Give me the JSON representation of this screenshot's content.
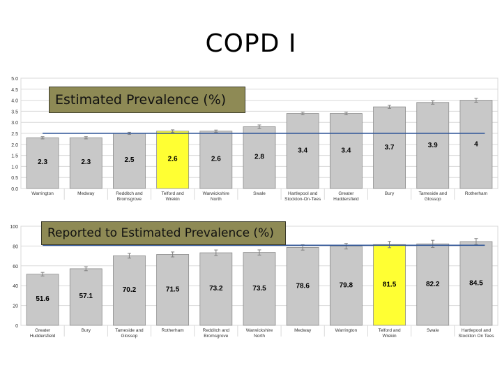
{
  "slide": {
    "title": "COPD I"
  },
  "chart_data": [
    {
      "type": "bar",
      "title": "Estimated Prevalence (%)",
      "categories": [
        "Warrington",
        "Medway",
        "Redditch and Bromsgrove",
        "Telford and Wrekin",
        "Warwickshire North",
        "Swale",
        "Hartlepool and Stockton-On-Tees",
        "Greater Huddersfield",
        "Bury",
        "Tameside and Glossop",
        "Rotherham"
      ],
      "values": [
        2.3,
        2.3,
        2.5,
        2.6,
        2.6,
        2.8,
        3.4,
        3.4,
        3.7,
        3.9,
        4
      ],
      "value_labels": [
        "2.3",
        "2.3",
        "2.5",
        "2.6",
        "2.6",
        "2.8",
        "3.4",
        "3.4",
        "3.7",
        "3.9",
        "4"
      ],
      "error_bars": [
        0.05,
        0.05,
        0.05,
        0.06,
        0.05,
        0.08,
        0.06,
        0.06,
        0.07,
        0.08,
        0.09
      ],
      "highlight": "Telford and Wrekin",
      "reference_line": 2.5,
      "ylim": [
        0,
        5
      ],
      "yticks": [
        "0.0",
        "0.5",
        "1.0",
        "1.5",
        "2.0",
        "2.5",
        "3.0",
        "3.5",
        "4.0",
        "4.5",
        "5.0"
      ],
      "grid": true,
      "colors": {
        "bar": "#c8c8c8",
        "highlight": "#ffff33",
        "line": "#2f5597"
      }
    },
    {
      "type": "bar",
      "title": "Reported to Estimated Prevalence (%)",
      "categories": [
        "Greater Huddersfield",
        "Bury",
        "Tameside and Glossop",
        "Rotherham",
        "Redditch and Bromsgrove",
        "Warwickshire North",
        "Medway",
        "Warrington",
        "Telford and Wrekin",
        "Swale",
        "Hartlepool and Stockton On Tees"
      ],
      "values": [
        51.6,
        57.1,
        70.2,
        71.5,
        73.2,
        73.5,
        78.6,
        79.8,
        81.5,
        82.2,
        84.5
      ],
      "value_labels": [
        "51.6",
        "57.1",
        "70.2",
        "71.5",
        "73.2",
        "73.5",
        "78.6",
        "79.8",
        "81.5",
        "82.2",
        "84.5"
      ],
      "error_bars": [
        1.8,
        2.0,
        2.4,
        2.5,
        2.8,
        2.6,
        2.7,
        2.8,
        3.2,
        3.6,
        3.0
      ],
      "highlight": "Telford and Wrekin",
      "reference_line": 80.8,
      "ylim": [
        0,
        100
      ],
      "yticks": [
        "0",
        "20",
        "40",
        "60",
        "80",
        "100"
      ],
      "grid": true,
      "colors": {
        "bar": "#c8c8c8",
        "highlight": "#ffff33",
        "line": "#2f5597"
      }
    }
  ]
}
